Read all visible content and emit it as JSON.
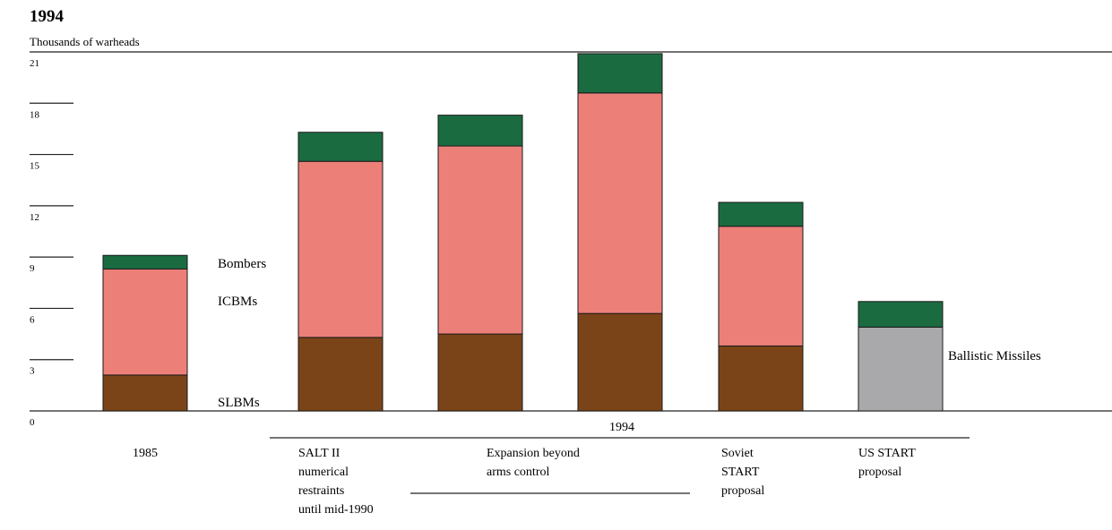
{
  "chart_data": {
    "type": "bar",
    "stacked": true,
    "title": "1994",
    "ylabel": "Thousands of warheads",
    "xlabel": "",
    "ylim": [
      0,
      21
    ],
    "yticks": [
      0,
      3,
      6,
      9,
      12,
      15,
      18,
      21
    ],
    "categories": [
      "1985",
      "SALT II numerical restraints until mid-1990",
      "Expansion beyond arms control",
      "1994",
      "Soviet START proposal",
      "US START proposal"
    ],
    "category_labels": [
      {
        "lines": [
          "1985"
        ]
      },
      {
        "lines": [
          "SALT II",
          "numerical",
          "restraints",
          "until mid-1990"
        ]
      },
      {
        "lines": [
          "Expansion beyond",
          "arms control"
        ]
      },
      {
        "lines": []
      },
      {
        "lines": [
          "Soviet",
          "START",
          "proposal"
        ]
      },
      {
        "lines": [
          "US START",
          "proposal"
        ]
      }
    ],
    "group_label": "1994",
    "series": [
      {
        "name": "SLBMs",
        "color": "#7b4418",
        "values": [
          2.1,
          4.3,
          4.5,
          5.7,
          3.8,
          0
        ]
      },
      {
        "name": "ICBMs",
        "color": "#ec8079",
        "values": [
          6.2,
          10.3,
          11.0,
          12.9,
          7.0,
          0
        ]
      },
      {
        "name": "Ballistic Missiles",
        "color": "#a9a9ab",
        "values": [
          0,
          0,
          0,
          0,
          0,
          4.9
        ]
      },
      {
        "name": "Bombers",
        "color": "#1b6b40",
        "values": [
          0.8,
          1.7,
          1.8,
          2.3,
          1.4,
          1.5
        ]
      }
    ],
    "grid": false
  }
}
